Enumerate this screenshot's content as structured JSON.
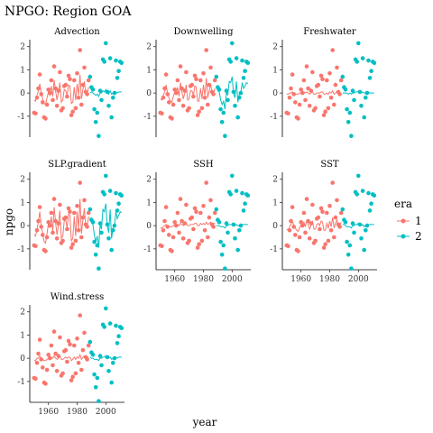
{
  "chart_data": {
    "type": "scatter",
    "title": "NPGO: Region GOA",
    "xlabel": "year",
    "ylabel": "npgo",
    "xlim": [
      1947,
      2013
    ],
    "ylim": [
      -1.9,
      2.3
    ],
    "x_ticks": [
      "1960",
      "1980",
      "2000"
    ],
    "y_ticks": [
      "-1",
      "0",
      "1",
      "2"
    ],
    "legend": {
      "title": "era",
      "position": "right",
      "entries": [
        {
          "label": "1",
          "color": "#F8766D"
        },
        {
          "label": "2",
          "color": "#00BFC4"
        }
      ]
    },
    "panels": [
      "Advection",
      "Downwelling",
      "Freshwater",
      "SLP.gradient",
      "SSH",
      "SST",
      "Wind.stress"
    ],
    "points_era1": [
      [
        1950,
        -0.85
      ],
      [
        1951,
        -0.88
      ],
      [
        1952,
        -0.2
      ],
      [
        1953,
        0.2
      ],
      [
        1954,
        0.8
      ],
      [
        1955,
        -0.05
      ],
      [
        1956,
        -0.4
      ],
      [
        1957,
        -1.05
      ],
      [
        1958,
        -1.1
      ],
      [
        1959,
        -0.5
      ],
      [
        1960,
        0.15
      ],
      [
        1961,
        0.0
      ],
      [
        1962,
        0.55
      ],
      [
        1963,
        -0.3
      ],
      [
        1964,
        1.15
      ],
      [
        1965,
        0.2
      ],
      [
        1966,
        -0.55
      ],
      [
        1967,
        0.1
      ],
      [
        1968,
        0.9
      ],
      [
        1969,
        -0.75
      ],
      [
        1970,
        -0.65
      ],
      [
        1971,
        0.3
      ],
      [
        1972,
        0.35
      ],
      [
        1973,
        -0.15
      ],
      [
        1974,
        0.75
      ],
      [
        1975,
        0.6
      ],
      [
        1976,
        -0.95
      ],
      [
        1977,
        -0.8
      ],
      [
        1978,
        0.55
      ],
      [
        1979,
        -0.65
      ],
      [
        1980,
        0.85
      ],
      [
        1981,
        -0.2
      ],
      [
        1982,
        1.85
      ],
      [
        1983,
        -0.5
      ],
      [
        1984,
        0.35
      ],
      [
        1985,
        1.1
      ],
      [
        1986,
        0.05
      ],
      [
        1987,
        -0.05
      ],
      [
        1988,
        0.55
      ]
    ],
    "points_era2": [
      [
        1989,
        0.7
      ],
      [
        1990,
        0.25
      ],
      [
        1991,
        0.15
      ],
      [
        1992,
        -0.7
      ],
      [
        1993,
        -1.25
      ],
      [
        1994,
        -0.85
      ],
      [
        1995,
        -1.85
      ],
      [
        1996,
        0.1
      ],
      [
        1997,
        -0.3
      ],
      [
        1998,
        1.45
      ],
      [
        1999,
        1.35
      ],
      [
        2000,
        2.15
      ],
      [
        2001,
        0.05
      ],
      [
        2002,
        -0.55
      ],
      [
        2003,
        1.5
      ],
      [
        2004,
        -1.05
      ],
      [
        2005,
        -0.2
      ],
      [
        2006,
        0.0
      ],
      [
        2007,
        1.4
      ],
      [
        2008,
        0.65
      ],
      [
        2009,
        0.95
      ],
      [
        2010,
        1.35
      ],
      [
        2011,
        1.3
      ]
    ],
    "fitted_era1": {
      "Advection": [
        -0.3,
        -0.35,
        -0.1,
        0.1,
        0.4,
        0.05,
        -0.25,
        -0.45,
        -0.5,
        -0.2,
        0.05,
        -0.1,
        0.3,
        -0.15,
        0.55,
        0.1,
        -0.3,
        0.05,
        0.45,
        -0.4,
        -0.3,
        0.15,
        0.1,
        -0.1,
        0.35,
        0.3,
        -0.45,
        -0.4,
        0.25,
        -0.3,
        0.4,
        -0.1,
        0.8,
        -0.25,
        0.15,
        0.5,
        0.0,
        -0.05,
        0.25
      ],
      "Downwelling": [
        -0.25,
        -0.3,
        -0.1,
        0.05,
        0.35,
        0.0,
        -0.2,
        -0.35,
        -0.4,
        -0.15,
        0.05,
        -0.05,
        0.25,
        -0.15,
        0.45,
        0.05,
        -0.25,
        0.0,
        0.35,
        -0.3,
        -0.25,
        0.1,
        0.1,
        -0.1,
        0.3,
        0.25,
        -0.35,
        -0.35,
        0.2,
        -0.25,
        0.35,
        -0.1,
        0.65,
        -0.2,
        0.1,
        0.4,
        0.0,
        -0.05,
        0.2
      ],
      "Freshwater": [
        -0.05,
        -0.05,
        0.0,
        0.0,
        0.05,
        0.0,
        -0.05,
        -0.05,
        -0.05,
        0.0,
        0.0,
        0.0,
        0.05,
        0.0,
        0.05,
        0.0,
        -0.05,
        0.0,
        0.05,
        -0.05,
        -0.05,
        0.0,
        0.0,
        0.0,
        0.05,
        0.05,
        -0.05,
        -0.05,
        0.0,
        -0.05,
        0.05,
        0.0,
        0.1,
        -0.05,
        0.0,
        0.05,
        0.0,
        0.0,
        0.0
      ],
      "SLP.gradient": [
        -0.4,
        -0.45,
        -0.15,
        0.15,
        0.6,
        0.0,
        -0.3,
        -0.7,
        -0.75,
        -0.35,
        0.1,
        -0.05,
        0.4,
        -0.25,
        0.8,
        0.15,
        -0.4,
        0.05,
        0.65,
        -0.55,
        -0.45,
        0.2,
        0.25,
        -0.1,
        0.5,
        0.45,
        -0.65,
        -0.55,
        0.4,
        -0.45,
        0.6,
        -0.15,
        1.15,
        -0.35,
        0.25,
        0.75,
        0.0,
        -0.05,
        0.4
      ],
      "SSH": [
        -0.1,
        -0.1,
        -0.05,
        0.0,
        0.05,
        0.0,
        -0.05,
        -0.05,
        -0.05,
        0.0,
        0.05,
        0.0,
        0.05,
        0.0,
        0.1,
        0.05,
        0.0,
        0.05,
        0.1,
        0.0,
        0.0,
        0.05,
        0.05,
        0.05,
        0.1,
        0.1,
        0.0,
        0.0,
        0.1,
        0.05,
        0.1,
        0.05,
        0.15,
        0.05,
        0.1,
        0.15,
        0.1,
        0.1,
        0.1
      ],
      "SST": [
        -0.15,
        -0.2,
        -0.05,
        0.05,
        0.2,
        0.0,
        -0.1,
        -0.2,
        -0.25,
        -0.1,
        0.05,
        0.0,
        0.15,
        -0.05,
        0.25,
        0.05,
        -0.15,
        0.0,
        0.2,
        -0.15,
        -0.15,
        0.05,
        0.1,
        0.0,
        0.2,
        0.15,
        -0.2,
        -0.2,
        0.1,
        -0.1,
        0.2,
        -0.05,
        0.35,
        -0.1,
        0.1,
        0.25,
        0.0,
        0.0,
        0.15
      ],
      "Wind.stress": [
        -0.1,
        -0.1,
        0.0,
        0.0,
        0.1,
        0.0,
        -0.05,
        -0.1,
        -0.1,
        -0.05,
        0.0,
        0.0,
        0.05,
        0.0,
        0.1,
        0.0,
        -0.05,
        0.0,
        0.1,
        -0.05,
        -0.05,
        0.0,
        0.05,
        0.0,
        0.05,
        0.05,
        -0.1,
        -0.05,
        0.05,
        -0.05,
        0.05,
        0.0,
        0.15,
        -0.05,
        0.05,
        0.1,
        0.0,
        0.0,
        0.05
      ]
    },
    "fitted_era2": {
      "Advection": [
        0.0,
        0.05,
        0.0,
        -0.05,
        -0.1,
        -0.05,
        -0.15,
        0.0,
        0.0,
        0.1,
        0.05,
        0.15,
        0.0,
        -0.05,
        0.1,
        -0.05,
        0.0,
        0.0,
        0.05,
        0.0,
        0.05,
        0.05,
        0.05
      ],
      "Downwelling": [
        0.3,
        0.1,
        0.05,
        -0.3,
        -0.5,
        -0.35,
        -0.7,
        0.05,
        -0.1,
        0.5,
        0.45,
        0.7,
        0.0,
        -0.2,
        0.5,
        -0.4,
        -0.05,
        0.0,
        0.45,
        0.2,
        0.3,
        0.45,
        0.4
      ],
      "Freshwater": [
        0.0,
        0.0,
        0.0,
        0.0,
        -0.05,
        0.0,
        -0.05,
        0.0,
        0.0,
        0.05,
        0.05,
        0.05,
        0.0,
        0.0,
        0.05,
        0.0,
        0.0,
        0.0,
        0.05,
        0.0,
        0.0,
        0.0,
        0.0
      ],
      "SLP.gradient": [
        0.35,
        0.15,
        0.05,
        -0.4,
        -0.7,
        -0.45,
        -0.95,
        0.05,
        -0.15,
        0.7,
        0.6,
        0.95,
        0.0,
        -0.3,
        0.7,
        -0.55,
        -0.1,
        0.0,
        0.6,
        0.3,
        0.45,
        0.6,
        0.55
      ],
      "SSH": [
        0.0,
        0.0,
        0.0,
        -0.05,
        -0.05,
        -0.05,
        -0.1,
        0.0,
        0.0,
        0.05,
        0.05,
        0.05,
        0.0,
        0.0,
        0.05,
        0.0,
        0.0,
        0.0,
        0.05,
        0.05,
        0.05,
        0.05,
        0.05
      ],
      "SST": [
        0.05,
        0.05,
        0.0,
        -0.05,
        -0.05,
        -0.05,
        -0.1,
        0.0,
        0.0,
        0.05,
        0.05,
        0.1,
        0.0,
        0.0,
        0.05,
        -0.05,
        0.0,
        0.0,
        0.05,
        0.05,
        0.05,
        0.05,
        0.05
      ],
      "Wind.stress": [
        0.05,
        0.0,
        0.0,
        -0.05,
        -0.05,
        -0.05,
        -0.1,
        0.0,
        0.0,
        0.05,
        0.05,
        0.1,
        0.0,
        0.0,
        0.05,
        -0.05,
        0.0,
        0.0,
        0.05,
        0.0,
        0.05,
        0.05,
        0.05
      ]
    }
  }
}
